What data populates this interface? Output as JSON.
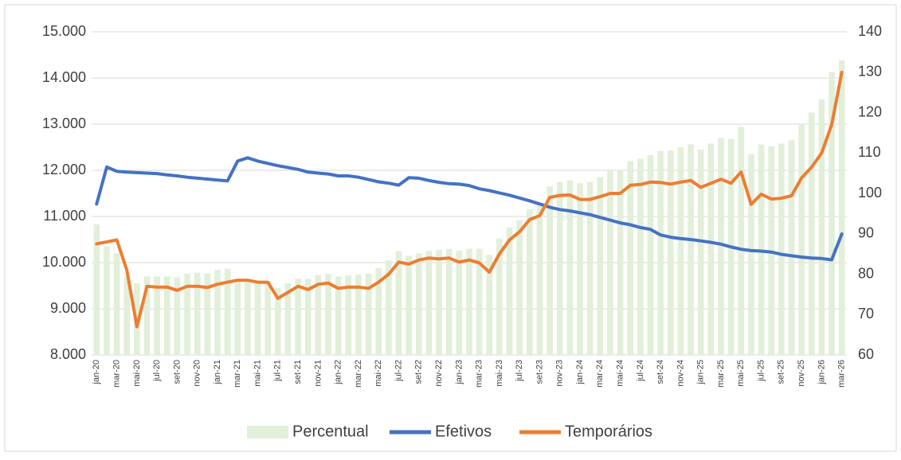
{
  "chart_data": {
    "type": "combo",
    "categories": [
      "jan-20",
      null,
      "mar-20",
      null,
      "mai-20",
      null,
      "jul-20",
      null,
      "set-20",
      null,
      "nov-20",
      null,
      "jan-21",
      null,
      "mar-21",
      null,
      "mai-21",
      null,
      "jul-21",
      null,
      "set-21",
      null,
      "nov-21",
      null,
      "jan-22",
      null,
      "mar-22",
      null,
      "mai-22",
      null,
      "jul-22",
      null,
      "set-22",
      null,
      "nov-22",
      null,
      "jan-23",
      null,
      "mar-23",
      null,
      "mai-23",
      null,
      "jul-23",
      null,
      "set-23",
      null,
      "nov-23",
      null,
      "jan-24",
      null,
      "mar-24",
      null,
      "mai-24",
      null,
      "jul-24",
      null,
      "set-24",
      null,
      "nov-24",
      null,
      "jan-25",
      null,
      "mar-25",
      null,
      "mai-25",
      null,
      "jul-25",
      null,
      "set-25",
      null,
      "nov-25",
      null,
      "jan-26",
      null,
      "mar-26"
    ],
    "series": [
      {
        "name": "Percentual",
        "type": "bar",
        "color": "#e2efd9",
        "values": [
          10830,
          10350,
          10200,
          9700,
          9550,
          9700,
          9700,
          9700,
          9680,
          9760,
          9780,
          9770,
          9840,
          9870,
          9650,
          9600,
          9600,
          9600,
          9450,
          9550,
          9650,
          9650,
          9730,
          9760,
          9700,
          9720,
          9740,
          9760,
          9880,
          10050,
          10250,
          10150,
          10200,
          10250,
          10280,
          10300,
          10260,
          10300,
          10300,
          10170,
          10520,
          10760,
          10920,
          11150,
          11250,
          11650,
          11750,
          11780,
          11720,
          11750,
          11850,
          12000,
          12000,
          12200,
          12250,
          12330,
          12420,
          12430,
          12500,
          12560,
          12450,
          12580,
          12700,
          12680,
          12940,
          12350,
          12560,
          12520,
          12580,
          12650,
          13000,
          13250,
          13540,
          14130,
          14380
        ]
      },
      {
        "name": "Efetivos",
        "type": "line",
        "color": "#4472c4",
        "values": [
          11270,
          12070,
          11980,
          11960,
          11950,
          11940,
          11930,
          11900,
          11880,
          11850,
          11830,
          11810,
          11790,
          11770,
          12200,
          12270,
          12200,
          12150,
          12100,
          12060,
          12020,
          11960,
          11940,
          11920,
          11880,
          11880,
          11850,
          11800,
          11750,
          11720,
          11680,
          11840,
          11830,
          11780,
          11740,
          11710,
          11700,
          11670,
          11600,
          11560,
          11510,
          11460,
          11400,
          11340,
          11270,
          11200,
          11150,
          11120,
          11080,
          11040,
          10980,
          10920,
          10860,
          10820,
          10760,
          10720,
          10600,
          10550,
          10520,
          10500,
          10470,
          10440,
          10400,
          10340,
          10290,
          10260,
          10250,
          10230,
          10180,
          10150,
          10120,
          10100,
          10090,
          10060,
          10620
        ]
      },
      {
        "name": "Temporários",
        "type": "line",
        "axis": "y2",
        "color": "#ed7d31",
        "values": [
          87.5,
          88,
          88.5,
          81,
          67,
          77,
          76.8,
          76.8,
          76,
          77,
          77,
          76.7,
          77.5,
          78,
          78.5,
          78.5,
          78,
          78,
          74,
          75.5,
          77,
          76.2,
          77.5,
          77.8,
          76.5,
          76.8,
          76.8,
          76.5,
          78,
          80,
          83,
          82.5,
          83.5,
          84,
          83.8,
          84,
          83,
          83.5,
          82.8,
          80.5,
          85,
          88.5,
          90.5,
          93.5,
          94.5,
          99,
          99.5,
          99.6,
          98.5,
          98.5,
          99.2,
          100,
          100,
          102,
          102.2,
          102.8,
          102.7,
          102.3,
          102.8,
          103.2,
          101.5,
          102.5,
          103.5,
          102.5,
          105.3,
          97.3,
          99.8,
          98.6,
          98.8,
          99.4,
          103.8,
          106.5,
          110,
          117,
          130
        ]
      }
    ],
    "ylim": [
      8000,
      15000
    ],
    "yticks": [
      {
        "value": 8000,
        "label": "8.000"
      },
      {
        "value": 9000,
        "label": "9.000"
      },
      {
        "value": 10000,
        "label": "10.000"
      },
      {
        "value": 11000,
        "label": "11.000"
      },
      {
        "value": 12000,
        "label": "12.000"
      },
      {
        "value": 13000,
        "label": "13.000"
      },
      {
        "value": 14000,
        "label": "14.000"
      },
      {
        "value": 15000,
        "label": "15.000"
      }
    ],
    "y2lim": [
      60,
      140
    ],
    "y2ticks": [
      60,
      70,
      80,
      90,
      100,
      110,
      120,
      130,
      140
    ],
    "grid": true,
    "legend": "bottom"
  }
}
